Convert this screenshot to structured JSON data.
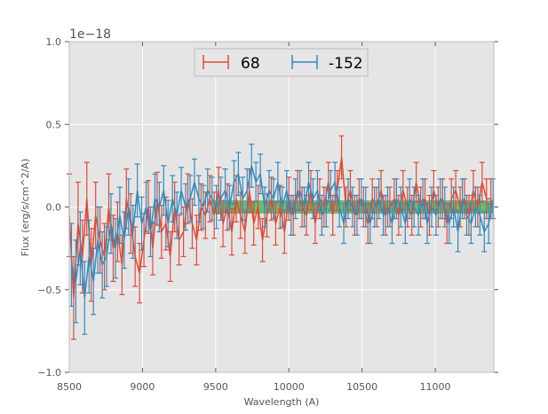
{
  "chart_data": {
    "type": "line",
    "title": "",
    "xlabel": "Wavelength (A)",
    "ylabel": "Flux (erg/s/cm^2/A)",
    "xlim": [
      8500,
      11400
    ],
    "ylim": [
      -1.0,
      1.0
    ],
    "y_offset_text": "1e−18",
    "x_ticks": [
      8500,
      9000,
      9500,
      10000,
      10500,
      11000
    ],
    "x_tick_labels": [
      "8500",
      "9000",
      "9500",
      "10000",
      "10500",
      "11000"
    ],
    "y_ticks": [
      -1.0,
      -0.5,
      0.0,
      0.5,
      1.0
    ],
    "y_tick_labels": [
      "−1.0",
      "−0.5",
      "0.0",
      "0.5",
      "1.0"
    ],
    "grid": true,
    "legend_position": "upper-center",
    "legend": [
      "68",
      "-152"
    ],
    "band": {
      "name": "model-band",
      "color": "#2ca02c",
      "x": [
        9480,
        11400
      ],
      "y": [
        -0.04,
        0.04
      ]
    },
    "series": [
      {
        "name": "68",
        "color": "#e24a33",
        "x": [
          8500,
          8530,
          8560,
          8590,
          8620,
          8650,
          8680,
          8710,
          8740,
          8770,
          8800,
          8830,
          8860,
          8890,
          8920,
          8950,
          8980,
          9010,
          9040,
          9070,
          9100,
          9130,
          9160,
          9190,
          9220,
          9250,
          9280,
          9310,
          9340,
          9370,
          9400,
          9430,
          9460,
          9490,
          9520,
          9550,
          9580,
          9610,
          9640,
          9670,
          9700,
          9730,
          9760,
          9790,
          9820,
          9850,
          9880,
          9910,
          9940,
          9970,
          10000,
          10030,
          10060,
          10090,
          10120,
          10150,
          10180,
          10210,
          10240,
          10270,
          10300,
          10330,
          10360,
          10390,
          10420,
          10450,
          10480,
          10510,
          10540,
          10570,
          10600,
          10630,
          10660,
          10690,
          10720,
          10750,
          10780,
          10810,
          10840,
          10870,
          10900,
          10930,
          10960,
          10990,
          11020,
          11050,
          11080,
          11110,
          11140,
          11170,
          11200,
          11230,
          11260,
          11290,
          11320,
          11350,
          11380
        ],
        "y": [
          -0.05,
          -0.55,
          -0.1,
          -0.3,
          0.05,
          -0.35,
          -0.05,
          -0.2,
          -0.3,
          0.0,
          -0.25,
          -0.15,
          -0.35,
          0.05,
          -0.1,
          -0.3,
          -0.4,
          -0.2,
          0.0,
          -0.25,
          0.05,
          -0.15,
          -0.1,
          -0.3,
          0.0,
          -0.2,
          -0.15,
          0.05,
          -0.1,
          -0.2,
          0.0,
          -0.05,
          0.05,
          -0.05,
          0.1,
          -0.1,
          0.0,
          -0.15,
          0.05,
          -0.05,
          -0.15,
          0.1,
          -0.1,
          0.0,
          -0.2,
          -0.05,
          0.05,
          -0.1,
          0.0,
          -0.15,
          0.05,
          -0.05,
          0.1,
          0.0,
          -0.05,
          0.1,
          -0.1,
          0.05,
          0.0,
          0.15,
          -0.05,
          0.1,
          0.3,
          0.0,
          0.1,
          -0.05,
          0.05,
          0.0,
          -0.1,
          0.05,
          0.0,
          0.1,
          -0.05,
          0.0,
          0.05,
          -0.05,
          0.1,
          0.0,
          -0.05,
          0.15,
          0.0,
          0.05,
          -0.05,
          0.1,
          0.0,
          0.05,
          -0.1,
          0.05,
          0.1,
          0.0,
          0.05,
          -0.05,
          0.1,
          0.0,
          0.15,
          0.05,
          0.05
        ],
        "err": [
          0.25,
          0.25,
          0.25,
          0.22,
          0.22,
          0.22,
          0.2,
          0.2,
          0.2,
          0.2,
          0.2,
          0.18,
          0.18,
          0.18,
          0.18,
          0.18,
          0.18,
          0.16,
          0.16,
          0.16,
          0.16,
          0.16,
          0.16,
          0.15,
          0.15,
          0.15,
          0.15,
          0.15,
          0.15,
          0.15,
          0.14,
          0.14,
          0.14,
          0.14,
          0.14,
          0.14,
          0.14,
          0.14,
          0.14,
          0.14,
          0.13,
          0.13,
          0.13,
          0.13,
          0.13,
          0.13,
          0.13,
          0.13,
          0.13,
          0.13,
          0.13,
          0.12,
          0.12,
          0.12,
          0.12,
          0.12,
          0.12,
          0.12,
          0.12,
          0.12,
          0.12,
          0.12,
          0.13,
          0.12,
          0.12,
          0.12,
          0.12,
          0.12,
          0.12,
          0.12,
          0.12,
          0.12,
          0.12,
          0.12,
          0.12,
          0.12,
          0.12,
          0.12,
          0.12,
          0.12,
          0.12,
          0.12,
          0.12,
          0.12,
          0.12,
          0.12,
          0.12,
          0.12,
          0.12,
          0.12,
          0.12,
          0.12,
          0.12,
          0.12,
          0.12,
          0.12,
          0.12
        ]
      },
      {
        "name": "-152",
        "color": "#348abd",
        "x": [
          8515,
          8545,
          8575,
          8605,
          8635,
          8665,
          8695,
          8725,
          8755,
          8785,
          8815,
          8845,
          8875,
          8905,
          8935,
          8965,
          8995,
          9025,
          9055,
          9085,
          9115,
          9145,
          9175,
          9205,
          9235,
          9265,
          9295,
          9325,
          9355,
          9385,
          9415,
          9445,
          9475,
          9505,
          9535,
          9565,
          9595,
          9625,
          9655,
          9685,
          9715,
          9745,
          9775,
          9805,
          9835,
          9865,
          9895,
          9925,
          9955,
          9985,
          10015,
          10045,
          10075,
          10105,
          10135,
          10165,
          10195,
          10225,
          10255,
          10285,
          10315,
          10345,
          10375,
          10405,
          10435,
          10465,
          10495,
          10525,
          10555,
          10585,
          10615,
          10645,
          10675,
          10705,
          10735,
          10765,
          10795,
          10825,
          10855,
          10885,
          10915,
          10945,
          10975,
          11005,
          11035,
          11065,
          11095,
          11125,
          11155,
          11185,
          11215,
          11245,
          11275,
          11305,
          11335,
          11365,
          11395
        ],
        "y": [
          -0.35,
          -0.45,
          -0.25,
          -0.55,
          -0.3,
          -0.45,
          -0.2,
          -0.35,
          -0.3,
          -0.1,
          -0.25,
          -0.05,
          -0.2,
          0.0,
          -0.15,
          0.1,
          -0.1,
          0.0,
          -0.15,
          0.05,
          0.0,
          0.1,
          -0.1,
          0.05,
          -0.05,
          0.1,
          0.0,
          0.05,
          0.15,
          0.05,
          0.0,
          0.1,
          0.05,
          0.0,
          0.05,
          0.1,
          0.0,
          0.15,
          0.2,
          0.05,
          0.1,
          0.25,
          0.15,
          0.2,
          0.0,
          0.1,
          0.05,
          0.15,
          0.0,
          0.1,
          -0.05,
          0.05,
          0.1,
          0.0,
          0.15,
          0.05,
          0.1,
          -0.05,
          0.0,
          0.1,
          0.15,
          0.0,
          -0.1,
          0.05,
          0.0,
          -0.05,
          0.05,
          0.0,
          -0.1,
          0.0,
          0.05,
          -0.05,
          0.0,
          -0.1,
          0.05,
          0.0,
          -0.1,
          0.05,
          0.0,
          -0.05,
          0.05,
          -0.1,
          0.0,
          -0.05,
          0.05,
          0.0,
          -0.1,
          0.0,
          -0.15,
          0.05,
          -0.05,
          -0.1,
          0.0,
          -0.05,
          -0.15,
          -0.1,
          0.05
        ],
        "err": [
          0.25,
          0.25,
          0.22,
          0.22,
          0.22,
          0.2,
          0.2,
          0.2,
          0.18,
          0.18,
          0.18,
          0.17,
          0.17,
          0.17,
          0.16,
          0.16,
          0.16,
          0.15,
          0.15,
          0.15,
          0.15,
          0.15,
          0.14,
          0.14,
          0.14,
          0.14,
          0.14,
          0.14,
          0.14,
          0.14,
          0.13,
          0.13,
          0.13,
          0.13,
          0.13,
          0.13,
          0.13,
          0.13,
          0.13,
          0.13,
          0.13,
          0.13,
          0.12,
          0.12,
          0.12,
          0.12,
          0.12,
          0.12,
          0.12,
          0.12,
          0.12,
          0.12,
          0.12,
          0.12,
          0.12,
          0.12,
          0.12,
          0.12,
          0.12,
          0.12,
          0.12,
          0.12,
          0.12,
          0.12,
          0.12,
          0.12,
          0.12,
          0.12,
          0.12,
          0.12,
          0.12,
          0.12,
          0.12,
          0.12,
          0.12,
          0.12,
          0.12,
          0.12,
          0.12,
          0.12,
          0.12,
          0.12,
          0.12,
          0.12,
          0.12,
          0.12,
          0.12,
          0.12,
          0.12,
          0.12,
          0.12,
          0.12,
          0.12,
          0.12,
          0.12,
          0.12,
          0.12
        ]
      }
    ]
  }
}
